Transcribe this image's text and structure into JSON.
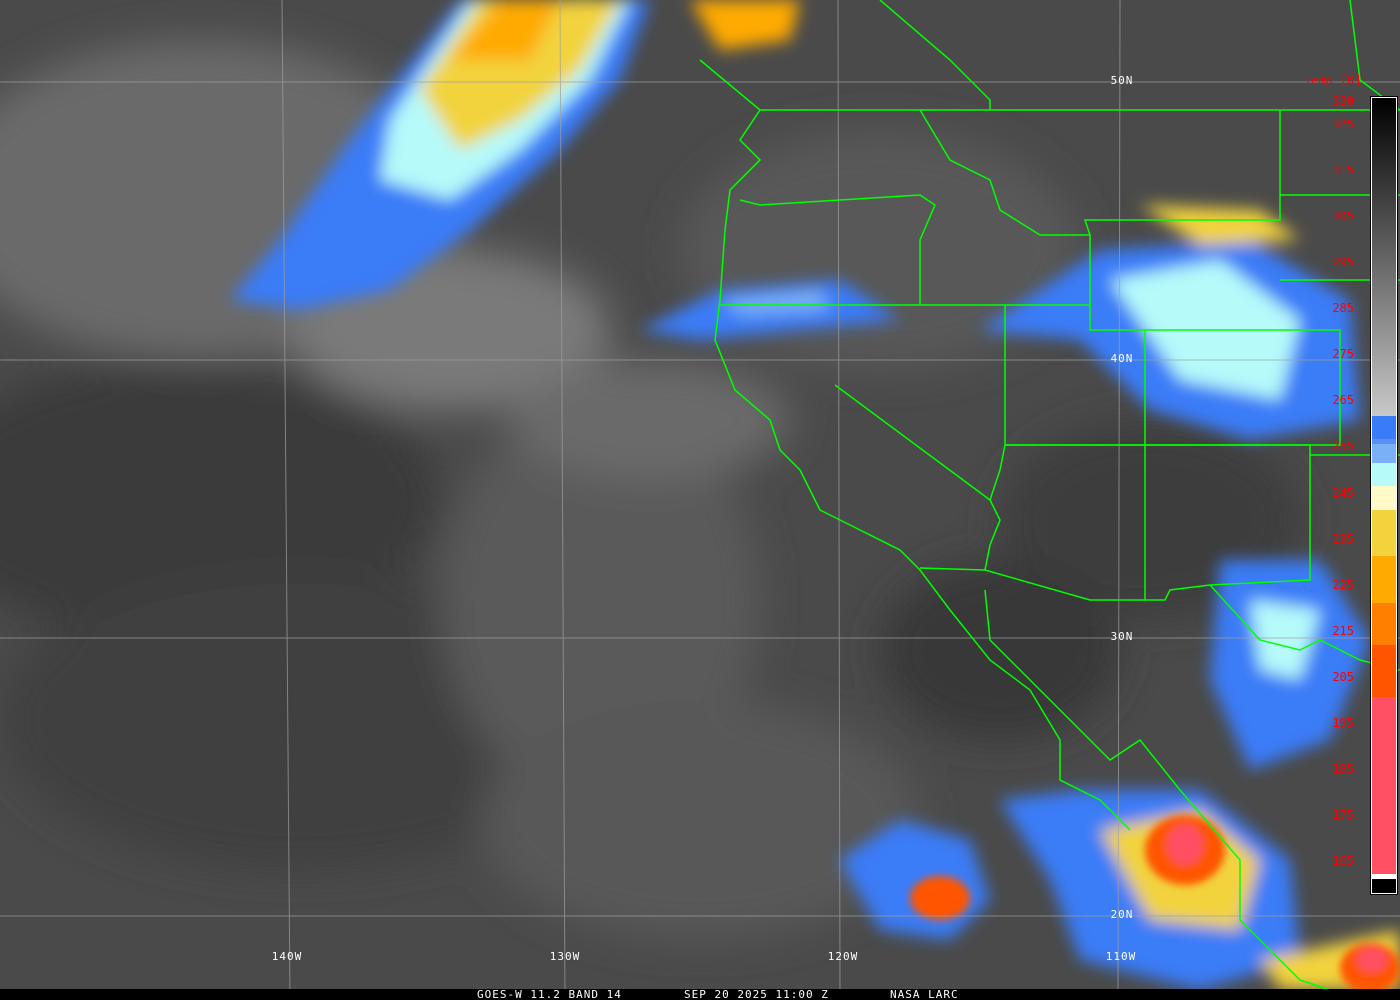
{
  "caption": {
    "product": "GOES-W 11.2 BAND 14",
    "datetime": "SEP 20 2025 11:00 Z",
    "credit": "NASA LARC"
  },
  "grid": {
    "longitudes": [
      {
        "label": "140W"
      },
      {
        "label": "130W"
      },
      {
        "label": "120W"
      },
      {
        "label": "110W"
      }
    ],
    "latitudes": [
      {
        "label": "50N"
      },
      {
        "label": "40N"
      },
      {
        "label": "30N"
      },
      {
        "label": "20N"
      }
    ]
  },
  "colorbar": {
    "title": "Temp [K]",
    "range": [
      160,
      330
    ],
    "tick_labels": [
      "330",
      "325",
      "315",
      "305",
      "295",
      "285",
      "275",
      "265",
      "255",
      "245",
      "235",
      "225",
      "215",
      "205",
      "195",
      "185",
      "175",
      "165"
    ],
    "ticks": [
      330,
      325,
      315,
      305,
      295,
      285,
      275,
      265,
      255,
      245,
      235,
      225,
      215,
      205,
      195,
      185,
      175,
      165
    ],
    "stops": [
      {
        "from": 330,
        "to": 262,
        "color": "gradient",
        "start": "#000000",
        "end": "#c8c8c8"
      },
      {
        "from": 262,
        "to": 257,
        "color": "#3a7bf7"
      },
      {
        "from": 257,
        "to": 256,
        "color": "#5b90f2"
      },
      {
        "from": 256,
        "to": 252,
        "color": "#7ab0f5"
      },
      {
        "from": 252,
        "to": 247,
        "color": "#b6fafa"
      },
      {
        "from": 247,
        "to": 242,
        "color": "#fffac8"
      },
      {
        "from": 242,
        "to": 232,
        "color": "#f2d33e"
      },
      {
        "from": 232,
        "to": 222,
        "color": "#ffaa00"
      },
      {
        "from": 222,
        "to": 213,
        "color": "#ff8000"
      },
      {
        "from": 213,
        "to": 202,
        "color": "#ff5500"
      },
      {
        "from": 202,
        "to": 164,
        "color": "#ff5064"
      },
      {
        "from": 164,
        "to": 163,
        "color": "#ffffff"
      },
      {
        "from": 163,
        "to": 160,
        "color": "#000000"
      }
    ]
  },
  "colors": {
    "borders": "#00ff00",
    "grid": "#a0a0a0",
    "labels": "#ff0000"
  }
}
